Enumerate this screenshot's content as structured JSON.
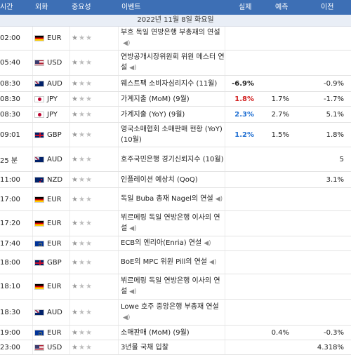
{
  "header": {
    "time": "시간",
    "currency": "외화",
    "importance": "중요성",
    "event": "이벤트",
    "actual": "실제",
    "forecast": "예측",
    "previous": "이전"
  },
  "date_label": "2022년 11월 8일 화요일",
  "rows": [
    {
      "time": "02:00",
      "flag": "de",
      "currency": "EUR",
      "event": "부흐 독일 연방은행 부총재의 연설",
      "speaker": true,
      "actual": "",
      "actual_color": "",
      "forecast": "",
      "previous": "",
      "h": 33
    },
    {
      "time": "05:40",
      "flag": "us",
      "currency": "USD",
      "event": "연방공개시장위원회 위원 메스터 연설",
      "speaker": true,
      "actual": "",
      "actual_color": "",
      "forecast": "",
      "previous": "",
      "h": 35
    },
    {
      "time": "08:30",
      "flag": "au",
      "currency": "AUD",
      "event": "웨스트팩 소비자심리지수 (11월)",
      "speaker": false,
      "actual": "-6.9%",
      "actual_color": "black",
      "forecast": "",
      "previous": "-0.9%",
      "h": 22
    },
    {
      "time": "08:30",
      "flag": "jp",
      "currency": "JPY",
      "event": "가계지출 (MoM) (9월)",
      "speaker": false,
      "actual": "1.8%",
      "actual_color": "red",
      "forecast": "1.7%",
      "previous": "-1.7%",
      "h": 20
    },
    {
      "time": "08:30",
      "flag": "jp",
      "currency": "JPY",
      "event": "가계지출 (YoY) (9월)",
      "speaker": false,
      "actual": "2.3%",
      "actual_color": "blue",
      "forecast": "2.7%",
      "previous": "5.1%",
      "h": 22
    },
    {
      "time": "09:01",
      "flag": "gb",
      "currency": "GBP",
      "event": "영국소매협회 소매판매 현황 (YoY) (10월)",
      "speaker": false,
      "actual": "1.2%",
      "actual_color": "blue",
      "forecast": "1.5%",
      "previous": "1.8%",
      "h": 34
    },
    {
      "time": "25 분",
      "flag": "au",
      "currency": "AUD",
      "event": "호주국민은행 경기신뢰지수 (10월)",
      "speaker": false,
      "actual": "",
      "actual_color": "",
      "forecast": "",
      "previous": "5",
      "h": 34
    },
    {
      "time": "11:00",
      "flag": "nz",
      "currency": "NZD",
      "event": "인플레이션 예상치 (QoQ)",
      "speaker": false,
      "actual": "",
      "actual_color": "",
      "forecast": "",
      "previous": "3.1%",
      "h": 22
    },
    {
      "time": "17:00",
      "flag": "de",
      "currency": "EUR",
      "event": "독일 Buba 총재 Nagel의 연설",
      "speaker": true,
      "actual": "",
      "actual_color": "",
      "forecast": "",
      "previous": "",
      "h": 32
    },
    {
      "time": "17:20",
      "flag": "de",
      "currency": "EUR",
      "event": "뷔르메링 독일 연방은행 이사의 연설",
      "speaker": true,
      "actual": "",
      "actual_color": "",
      "forecast": "",
      "previous": "",
      "h": 35
    },
    {
      "time": "17:40",
      "flag": "eu",
      "currency": "EUR",
      "event": "ECB의 엔리아(Enria) 연설",
      "speaker": true,
      "actual": "",
      "actual_color": "",
      "forecast": "",
      "previous": "",
      "h": 20
    },
    {
      "time": "18:00",
      "flag": "gb",
      "currency": "GBP",
      "event": "BoE의 MPC 위원 Pill의 연설",
      "speaker": true,
      "actual": "",
      "actual_color": "",
      "forecast": "",
      "previous": "",
      "h": 32
    },
    {
      "time": "18:10",
      "flag": "de",
      "currency": "EUR",
      "event": "뷔르메링 독일 연방은행 이사의 연설",
      "speaker": true,
      "actual": "",
      "actual_color": "",
      "forecast": "",
      "previous": "",
      "h": 35
    },
    {
      "time": "18:30",
      "flag": "au",
      "currency": "AUD",
      "event": "Lowe 호주 중앙은행 부총재 연설",
      "speaker": true,
      "actual": "",
      "actual_color": "",
      "forecast": "",
      "previous": "",
      "h": 36
    },
    {
      "time": "19:00",
      "flag": "eu",
      "currency": "EUR",
      "event": "소매판매 (MoM) (9월)",
      "speaker": false,
      "actual": "",
      "actual_color": "",
      "forecast": "0.4%",
      "previous": "-0.3%",
      "h": 20
    },
    {
      "time": "23:00",
      "flag": "us",
      "currency": "USD",
      "event": "3년물 국채 입찰",
      "speaker": false,
      "actual": "",
      "actual_color": "",
      "forecast": "",
      "previous": "4.318%",
      "h": 20
    }
  ],
  "stars": {
    "filled": "★",
    "empty": "★"
  },
  "colors": {
    "header_bg": "#3d6fb5",
    "date_bg": "#e9eef6",
    "red": "#d21f1f",
    "blue": "#1f6fd2"
  }
}
